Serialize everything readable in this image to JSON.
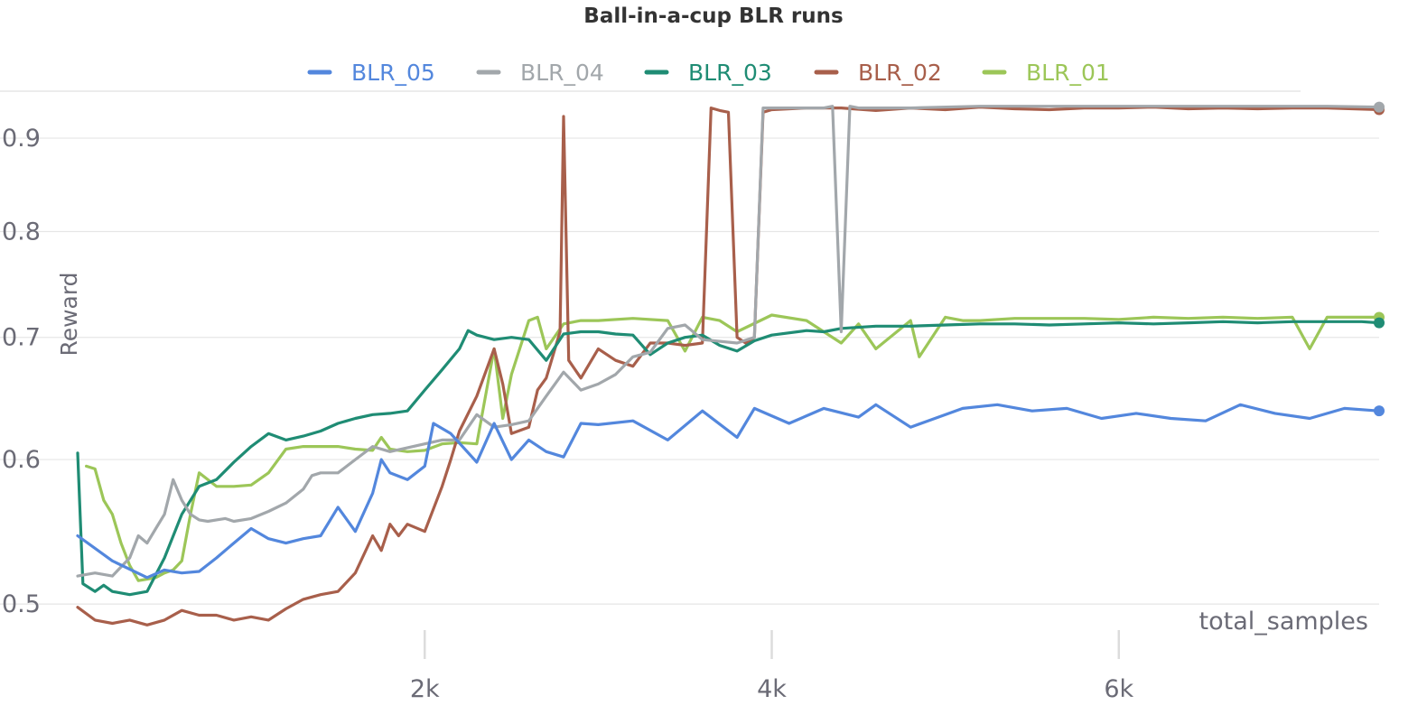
{
  "chart_data": {
    "type": "line",
    "title": "Ball-in-a-cup BLR runs",
    "xlabel": "total_samples",
    "ylabel": "Reward",
    "x_range": [
      0,
      7500
    ],
    "y_range": [
      0.48,
      0.955
    ],
    "y_scale": "log",
    "x_ticks": [
      2000,
      4000,
      6000
    ],
    "x_tick_labels": [
      "2k",
      "4k",
      "6k"
    ],
    "y_ticks": [
      0.5,
      0.6,
      0.7,
      0.8,
      0.9
    ],
    "y_tick_labels": [
      "0.5",
      "0.6",
      "0.7",
      "0.8",
      "0.9"
    ],
    "grid": true,
    "legend_position": "top",
    "legend": [
      "BLR_05",
      "BLR_04",
      "BLR_03",
      "BLR_02",
      "BLR_01"
    ],
    "series": [
      {
        "name": "BLR_05",
        "color": "#5387dd",
        "x": [
          0,
          200,
          400,
          500,
          600,
          700,
          800,
          900,
          1000,
          1100,
          1200,
          1300,
          1400,
          1500,
          1600,
          1700,
          1750,
          1800,
          1900,
          2000,
          2050,
          2150,
          2300,
          2400,
          2500,
          2600,
          2700,
          2800,
          2900,
          3000,
          3200,
          3400,
          3600,
          3800,
          3900,
          4100,
          4300,
          4500,
          4600,
          4800,
          4900,
          5100,
          5300,
          5500,
          5700,
          5900,
          6100,
          6300,
          6500,
          6700,
          6900,
          7100,
          7300,
          7500
        ],
        "y": [
          0.545,
          0.528,
          0.517,
          0.522,
          0.52,
          0.521,
          0.53,
          0.54,
          0.55,
          0.543,
          0.54,
          0.543,
          0.545,
          0.565,
          0.548,
          0.575,
          0.6,
          0.59,
          0.585,
          0.595,
          0.628,
          0.62,
          0.598,
          0.628,
          0.6,
          0.615,
          0.606,
          0.602,
          0.628,
          0.627,
          0.63,
          0.615,
          0.638,
          0.617,
          0.64,
          0.628,
          0.64,
          0.633,
          0.643,
          0.625,
          0.63,
          0.64,
          0.643,
          0.638,
          0.64,
          0.632,
          0.636,
          0.632,
          0.63,
          0.643,
          0.636,
          0.632,
          0.64,
          0.638
        ]
      },
      {
        "name": "BLR_04",
        "color": "#a2a7ab",
        "x": [
          0,
          100,
          200,
          300,
          350,
          400,
          450,
          500,
          550,
          600,
          650,
          700,
          750,
          800,
          850,
          900,
          1000,
          1100,
          1200,
          1300,
          1350,
          1400,
          1500,
          1600,
          1700,
          1800,
          2000,
          2100,
          2200,
          2300,
          2400,
          2500,
          2600,
          2700,
          2800,
          2900,
          3000,
          3100,
          3200,
          3300,
          3400,
          3500,
          3600,
          3800,
          3900,
          3950,
          4000,
          4200,
          4300,
          4350,
          4400,
          4450,
          4500,
          4800,
          5200,
          5600,
          6000,
          6400,
          6800,
          7200,
          7500
        ],
        "y": [
          0.518,
          0.52,
          0.518,
          0.53,
          0.545,
          0.54,
          0.55,
          0.56,
          0.585,
          0.57,
          0.56,
          0.556,
          0.555,
          0.556,
          0.557,
          0.555,
          0.557,
          0.562,
          0.568,
          0.578,
          0.588,
          0.59,
          0.59,
          0.6,
          0.61,
          0.606,
          0.612,
          0.615,
          0.615,
          0.635,
          0.625,
          0.627,
          0.63,
          0.65,
          0.67,
          0.655,
          0.66,
          0.668,
          0.683,
          0.687,
          0.708,
          0.711,
          0.698,
          0.695,
          0.7,
          0.935,
          0.935,
          0.935,
          0.935,
          0.937,
          0.705,
          0.937,
          0.935,
          0.935,
          0.937,
          0.937,
          0.937,
          0.937,
          0.937,
          0.937,
          0.936
        ]
      },
      {
        "name": "BLR_03",
        "color": "#1f8c74",
        "x": [
          0,
          30,
          100,
          150,
          200,
          300,
          400,
          500,
          600,
          700,
          800,
          900,
          1000,
          1100,
          1200,
          1300,
          1400,
          1500,
          1600,
          1700,
          1800,
          1900,
          2000,
          2100,
          2200,
          2250,
          2300,
          2400,
          2500,
          2600,
          2700,
          2800,
          2900,
          3000,
          3100,
          3200,
          3300,
          3400,
          3500,
          3600,
          3700,
          3800,
          3900,
          4000,
          4200,
          4300,
          4400,
          4600,
          4800,
          5000,
          5200,
          5400,
          5600,
          5800,
          6000,
          6200,
          6400,
          6600,
          6800,
          7000,
          7200,
          7400,
          7500
        ],
        "y": [
          0.605,
          0.513,
          0.508,
          0.512,
          0.508,
          0.506,
          0.508,
          0.53,
          0.56,
          0.58,
          0.585,
          0.598,
          0.61,
          0.62,
          0.615,
          0.618,
          0.622,
          0.628,
          0.632,
          0.635,
          0.636,
          0.638,
          0.655,
          0.672,
          0.69,
          0.706,
          0.702,
          0.698,
          0.7,
          0.698,
          0.68,
          0.703,
          0.705,
          0.705,
          0.703,
          0.702,
          0.685,
          0.695,
          0.7,
          0.702,
          0.693,
          0.688,
          0.697,
          0.702,
          0.706,
          0.705,
          0.708,
          0.71,
          0.71,
          0.711,
          0.712,
          0.712,
          0.711,
          0.712,
          0.713,
          0.712,
          0.713,
          0.714,
          0.713,
          0.714,
          0.714,
          0.714,
          0.713
        ]
      },
      {
        "name": "BLR_02",
        "color": "#a85f4b",
        "x": [
          0,
          100,
          200,
          300,
          400,
          500,
          600,
          700,
          800,
          900,
          1000,
          1100,
          1200,
          1300,
          1400,
          1500,
          1600,
          1700,
          1750,
          1800,
          1850,
          1900,
          2000,
          2100,
          2150,
          2200,
          2300,
          2400,
          2450,
          2500,
          2600,
          2650,
          2700,
          2780,
          2800,
          2830,
          2900,
          3000,
          3100,
          3200,
          3300,
          3400,
          3500,
          3600,
          3650,
          3700,
          3750,
          3800,
          3850,
          3900,
          3950,
          4000,
          4200,
          4400,
          4600,
          4800,
          5000,
          5200,
          5400,
          5600,
          5800,
          6000,
          6200,
          6400,
          6600,
          6800,
          7000,
          7200,
          7500
        ],
        "y": [
          0.498,
          0.49,
          0.488,
          0.49,
          0.487,
          0.49,
          0.496,
          0.493,
          0.493,
          0.49,
          0.492,
          0.49,
          0.497,
          0.503,
          0.506,
          0.508,
          0.52,
          0.545,
          0.535,
          0.553,
          0.545,
          0.553,
          0.548,
          0.58,
          0.6,
          0.622,
          0.65,
          0.69,
          0.66,
          0.62,
          0.625,
          0.655,
          0.665,
          0.705,
          0.925,
          0.68,
          0.665,
          0.69,
          0.68,
          0.675,
          0.695,
          0.695,
          0.693,
          0.695,
          0.935,
          0.932,
          0.93,
          0.7,
          0.695,
          0.7,
          0.93,
          0.933,
          0.935,
          0.935,
          0.932,
          0.935,
          0.933,
          0.936,
          0.934,
          0.933,
          0.935,
          0.935,
          0.936,
          0.934,
          0.935,
          0.934,
          0.935,
          0.935,
          0.933
        ]
      },
      {
        "name": "BLR_01",
        "color": "#9cc658",
        "x": [
          50,
          100,
          150,
          200,
          250,
          300,
          350,
          400,
          450,
          500,
          550,
          600,
          650,
          700,
          800,
          900,
          1000,
          1100,
          1200,
          1300,
          1400,
          1500,
          1600,
          1700,
          1750,
          1800,
          1900,
          2000,
          2100,
          2200,
          2300,
          2400,
          2450,
          2500,
          2600,
          2650,
          2700,
          2800,
          2900,
          3000,
          3200,
          3400,
          3500,
          3600,
          3700,
          3800,
          4000,
          4200,
          4400,
          4500,
          4600,
          4800,
          4850,
          5000,
          5100,
          5200,
          5400,
          5600,
          5800,
          6000,
          6200,
          6400,
          6600,
          6800,
          7000,
          7100,
          7200,
          7400,
          7500
        ],
        "y": [
          0.595,
          0.593,
          0.57,
          0.56,
          0.54,
          0.525,
          0.515,
          0.516,
          0.517,
          0.52,
          0.522,
          0.528,
          0.56,
          0.59,
          0.58,
          0.58,
          0.581,
          0.59,
          0.608,
          0.61,
          0.61,
          0.61,
          0.608,
          0.607,
          0.617,
          0.608,
          0.606,
          0.607,
          0.612,
          0.613,
          0.612,
          0.69,
          0.632,
          0.668,
          0.715,
          0.718,
          0.69,
          0.712,
          0.715,
          0.715,
          0.717,
          0.715,
          0.688,
          0.718,
          0.715,
          0.705,
          0.72,
          0.715,
          0.695,
          0.712,
          0.69,
          0.715,
          0.683,
          0.718,
          0.715,
          0.715,
          0.717,
          0.717,
          0.717,
          0.716,
          0.718,
          0.717,
          0.718,
          0.717,
          0.718,
          0.69,
          0.718,
          0.718,
          0.718
        ]
      }
    ]
  }
}
